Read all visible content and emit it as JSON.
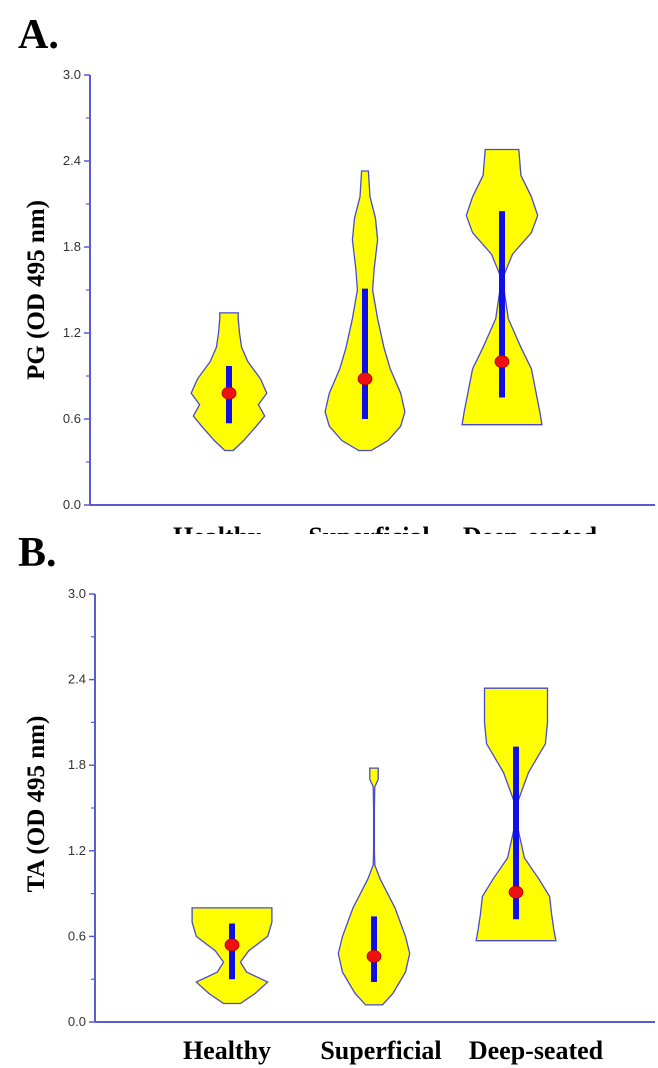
{
  "colors": {
    "axis": "#5b5bd0",
    "violin_fill": "#ffff00",
    "violin_stroke": "#4a4acc",
    "box": "#1010e6",
    "median": "#ee1111"
  },
  "chart_data": [
    {
      "type": "violin",
      "panel_label": "A.",
      "ylabel": "PG (OD 495 nm)",
      "ylim": [
        0,
        3
      ],
      "yticks": [
        "0.0",
        "0.6",
        "1.2",
        "1.8",
        "2.4",
        "3.0"
      ],
      "categories": [
        "Healthy",
        "Superficial",
        "Deep-seated"
      ],
      "series": [
        {
          "min": 0.38,
          "max": 1.34,
          "q1": 0.57,
          "q3": 0.97,
          "median": 0.78,
          "profile": [
            [
              0.38,
              0.1
            ],
            [
              0.45,
              0.35
            ],
            [
              0.55,
              0.65
            ],
            [
              0.62,
              0.85
            ],
            [
              0.7,
              0.7
            ],
            [
              0.78,
              0.9
            ],
            [
              0.88,
              0.75
            ],
            [
              1.0,
              0.45
            ],
            [
              1.1,
              0.3
            ],
            [
              1.2,
              0.25
            ],
            [
              1.3,
              0.22
            ],
            [
              1.34,
              0.22
            ]
          ]
        },
        {
          "min": 0.38,
          "max": 2.33,
          "q1": 0.6,
          "q3": 1.51,
          "median": 0.88,
          "profile": [
            [
              0.38,
              0.15
            ],
            [
              0.45,
              0.55
            ],
            [
              0.55,
              0.85
            ],
            [
              0.65,
              0.95
            ],
            [
              0.78,
              0.85
            ],
            [
              0.95,
              0.6
            ],
            [
              1.1,
              0.45
            ],
            [
              1.3,
              0.3
            ],
            [
              1.5,
              0.18
            ],
            [
              1.65,
              0.22
            ],
            [
              1.85,
              0.3
            ],
            [
              2.0,
              0.25
            ],
            [
              2.15,
              0.12
            ],
            [
              2.33,
              0.08
            ]
          ]
        },
        {
          "min": 0.56,
          "max": 2.48,
          "q1": 0.75,
          "q3": 2.05,
          "median": 1.0,
          "profile": [
            [
              0.56,
              0.95
            ],
            [
              0.65,
              0.9
            ],
            [
              0.8,
              0.8
            ],
            [
              0.95,
              0.7
            ],
            [
              1.1,
              0.45
            ],
            [
              1.3,
              0.15
            ],
            [
              1.5,
              0.05
            ],
            [
              1.6,
              0.04
            ],
            [
              1.75,
              0.25
            ],
            [
              1.9,
              0.7
            ],
            [
              2.02,
              0.85
            ],
            [
              2.15,
              0.7
            ],
            [
              2.3,
              0.45
            ],
            [
              2.48,
              0.4
            ]
          ]
        }
      ]
    },
    {
      "type": "violin",
      "panel_label": "B.",
      "ylabel": "TA (OD 495 nm)",
      "ylim": [
        0,
        3
      ],
      "yticks": [
        "0.0",
        "0.6",
        "1.2",
        "1.8",
        "2.4",
        "3.0"
      ],
      "categories": [
        "Healthy",
        "Superficial",
        "Deep-seated"
      ],
      "series": [
        {
          "min": 0.13,
          "max": 0.8,
          "q1": 0.3,
          "q3": 0.69,
          "median": 0.54,
          "profile": [
            [
              0.13,
              0.2
            ],
            [
              0.2,
              0.55
            ],
            [
              0.28,
              0.85
            ],
            [
              0.35,
              0.35
            ],
            [
              0.42,
              0.2
            ],
            [
              0.5,
              0.4
            ],
            [
              0.6,
              0.85
            ],
            [
              0.7,
              0.95
            ],
            [
              0.8,
              0.95
            ]
          ]
        },
        {
          "min": 0.12,
          "max": 1.78,
          "q1": 0.28,
          "q3": 0.74,
          "median": 0.46,
          "profile": [
            [
              0.12,
              0.2
            ],
            [
              0.2,
              0.45
            ],
            [
              0.35,
              0.75
            ],
            [
              0.48,
              0.85
            ],
            [
              0.6,
              0.75
            ],
            [
              0.8,
              0.5
            ],
            [
              1.0,
              0.15
            ],
            [
              1.1,
              0.02
            ],
            [
              1.2,
              0.01
            ],
            [
              1.5,
              0.01
            ],
            [
              1.65,
              0.02
            ],
            [
              1.7,
              0.1
            ],
            [
              1.78,
              0.1
            ]
          ]
        },
        {
          "min": 0.57,
          "max": 2.34,
          "q1": 0.72,
          "q3": 1.93,
          "median": 0.91,
          "profile": [
            [
              0.57,
              0.95
            ],
            [
              0.65,
              0.9
            ],
            [
              0.75,
              0.85
            ],
            [
              0.88,
              0.8
            ],
            [
              1.0,
              0.55
            ],
            [
              1.15,
              0.2
            ],
            [
              1.35,
              0.05
            ],
            [
              1.55,
              0.05
            ],
            [
              1.75,
              0.3
            ],
            [
              1.95,
              0.7
            ],
            [
              2.1,
              0.75
            ],
            [
              2.25,
              0.75
            ],
            [
              2.34,
              0.75
            ]
          ]
        }
      ]
    }
  ]
}
